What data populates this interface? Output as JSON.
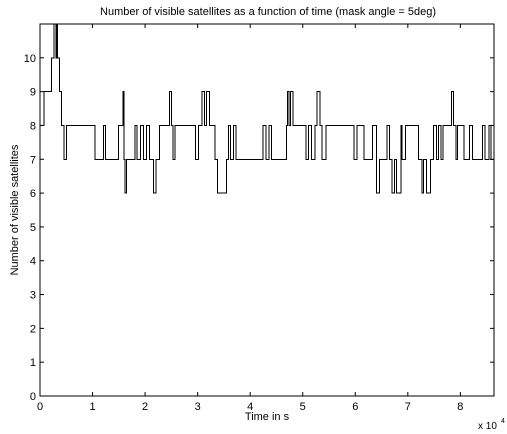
{
  "chart_data": {
    "type": "line",
    "title": "Number of visible satellites as a function of time (mask angle = 5deg)",
    "xlabel": "Time in s",
    "ylabel": "Number of visible satellites",
    "x_exponent_base": "x 10",
    "x_exponent_power": "4",
    "xlim": [
      0,
      86400
    ],
    "ylim": [
      0,
      11
    ],
    "xticks": [
      0,
      10000,
      20000,
      30000,
      40000,
      50000,
      60000,
      70000,
      80000
    ],
    "xtick_labels": [
      "0",
      "1",
      "2",
      "3",
      "4",
      "5",
      "6",
      "7",
      "8"
    ],
    "yticks": [
      0,
      1,
      2,
      3,
      4,
      5,
      6,
      7,
      8,
      9,
      10
    ],
    "ytick_labels": [
      "0",
      "1",
      "2",
      "3",
      "4",
      "5",
      "6",
      "7",
      "8",
      "9",
      "10"
    ],
    "grid": false,
    "line_color": "#000000",
    "series": [
      {
        "step": true,
        "x": [
          0,
          800,
          2200,
          2700,
          3000,
          3150,
          3300,
          3700,
          4100,
          4600,
          5000,
          10500,
          12100,
          12500,
          14900,
          15800,
          16000,
          16200,
          16500,
          18100,
          18500,
          19100,
          19700,
          20300,
          20800,
          21600,
          22100,
          22700,
          24600,
          25000,
          25300,
          25700,
          29600,
          30200,
          30800,
          31300,
          31700,
          32300,
          33300,
          33800,
          35500,
          35900,
          36300,
          36800,
          37300,
          42400,
          43000,
          43600,
          44100,
          46900,
          47100,
          47400,
          47700,
          48100,
          50600,
          51100,
          51700,
          52300,
          52700,
          53300,
          53700,
          54400,
          59800,
          60300,
          61700,
          63300,
          64000,
          64600,
          66000,
          66500,
          67000,
          67500,
          67800,
          68700,
          68900,
          69600,
          72000,
          72700,
          73000,
          73600,
          74300,
          74900,
          75500,
          75800,
          76300,
          76700,
          78300,
          78700,
          79200,
          79500,
          80700,
          81700,
          82300,
          84200,
          84700,
          85400,
          85800,
          86400
        ],
        "y": [
          8,
          9,
          10,
          11,
          10,
          11,
          10,
          9,
          8,
          7,
          8,
          7,
          8,
          7,
          8,
          9,
          7,
          6,
          7,
          8,
          7,
          8,
          7,
          8,
          7,
          6,
          7,
          8,
          9,
          8,
          7,
          8,
          7,
          8,
          9,
          8,
          9,
          8,
          7,
          6,
          7,
          8,
          7,
          8,
          7,
          8,
          7,
          8,
          7,
          8,
          9,
          8,
          9,
          8,
          7,
          8,
          7,
          8,
          9,
          8,
          7,
          8,
          7,
          8,
          7,
          8,
          6,
          7,
          8,
          7,
          6,
          7,
          6,
          8,
          7,
          8,
          7,
          6,
          7,
          6,
          7,
          8,
          7,
          8,
          7,
          8,
          9,
          8,
          7,
          8,
          7,
          8,
          7,
          8,
          7,
          8,
          7,
          7
        ]
      }
    ]
  }
}
